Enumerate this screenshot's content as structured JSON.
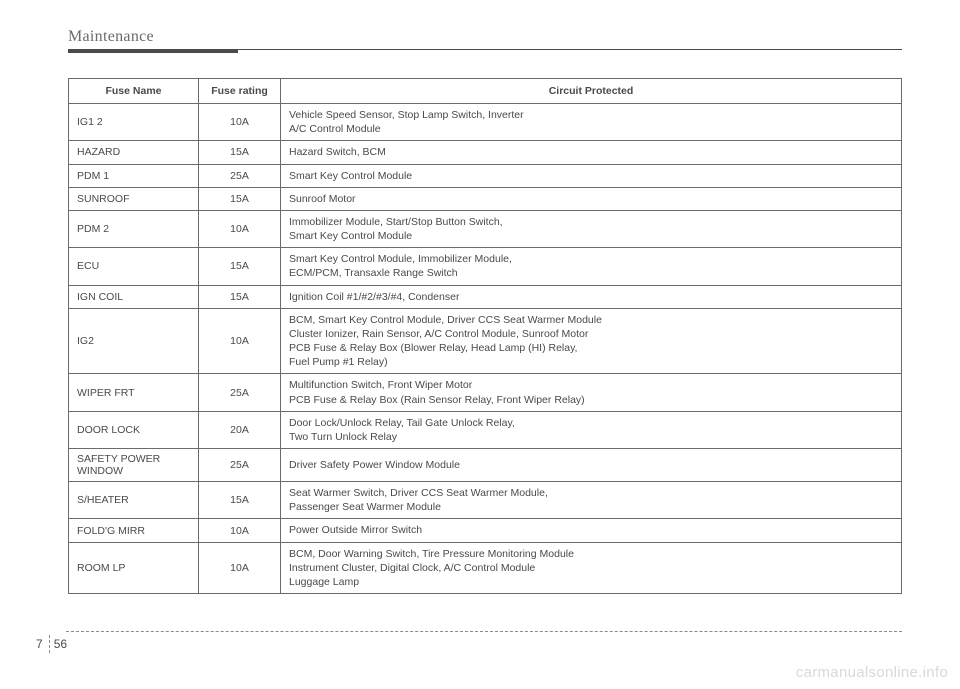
{
  "header": {
    "title": "Maintenance"
  },
  "table": {
    "headers": {
      "name": "Fuse Name",
      "rating": "Fuse rating",
      "circuit": "Circuit Protected"
    },
    "rows": [
      {
        "name": "IG1 2",
        "rating": "10A",
        "circuit": "Vehicle Speed Sensor, Stop Lamp Switch, Inverter\nA/C Control Module"
      },
      {
        "name": "HAZARD",
        "rating": "15A",
        "circuit": "Hazard Switch, BCM"
      },
      {
        "name": "PDM 1",
        "rating": "25A",
        "circuit": "Smart Key Control Module"
      },
      {
        "name": "SUNROOF",
        "rating": "15A",
        "circuit": "Sunroof Motor"
      },
      {
        "name": "PDM 2",
        "rating": "10A",
        "circuit": "Immobilizer Module, Start/Stop Button Switch,\nSmart Key Control Module"
      },
      {
        "name": "ECU",
        "rating": "15A",
        "circuit": "Smart Key Control Module, Immobilizer Module,\nECM/PCM, Transaxle Range Switch"
      },
      {
        "name": "IGN COIL",
        "rating": "15A",
        "circuit": "Ignition Coil #1/#2/#3/#4, Condenser"
      },
      {
        "name": "IG2",
        "rating": "10A",
        "circuit": "BCM, Smart Key Control Module, Driver CCS Seat Warmer Module\nCluster Ionizer, Rain Sensor, A/C Control Module, Sunroof Motor\nPCB Fuse & Relay Box (Blower Relay, Head Lamp (HI) Relay,\nFuel Pump #1 Relay)"
      },
      {
        "name": "WIPER FRT",
        "rating": "25A",
        "circuit": "Multifunction Switch, Front Wiper Motor\nPCB Fuse & Relay Box (Rain Sensor Relay, Front Wiper Relay)"
      },
      {
        "name": "DOOR LOCK",
        "rating": "20A",
        "circuit": "Door Lock/Unlock Relay, Tail Gate Unlock Relay,\nTwo Turn Unlock Relay"
      },
      {
        "name": "SAFETY POWER WINDOW",
        "rating": "25A",
        "circuit": "Driver Safety Power Window Module"
      },
      {
        "name": "S/HEATER",
        "rating": "15A",
        "circuit": "Seat Warmer Switch, Driver CCS Seat Warmer Module,\nPassenger Seat Warmer Module"
      },
      {
        "name": "FOLD'G MIRR",
        "rating": "10A",
        "circuit": "Power Outside Mirror Switch"
      },
      {
        "name": "ROOM LP",
        "rating": "10A",
        "circuit": "BCM, Door Warning Switch, Tire Pressure Monitoring Module\nInstrument Cluster, Digital Clock, A/C Control Module\nLuggage Lamp"
      }
    ]
  },
  "footer": {
    "section": "7",
    "page": "56"
  },
  "watermark": "carmanualsonline.info"
}
